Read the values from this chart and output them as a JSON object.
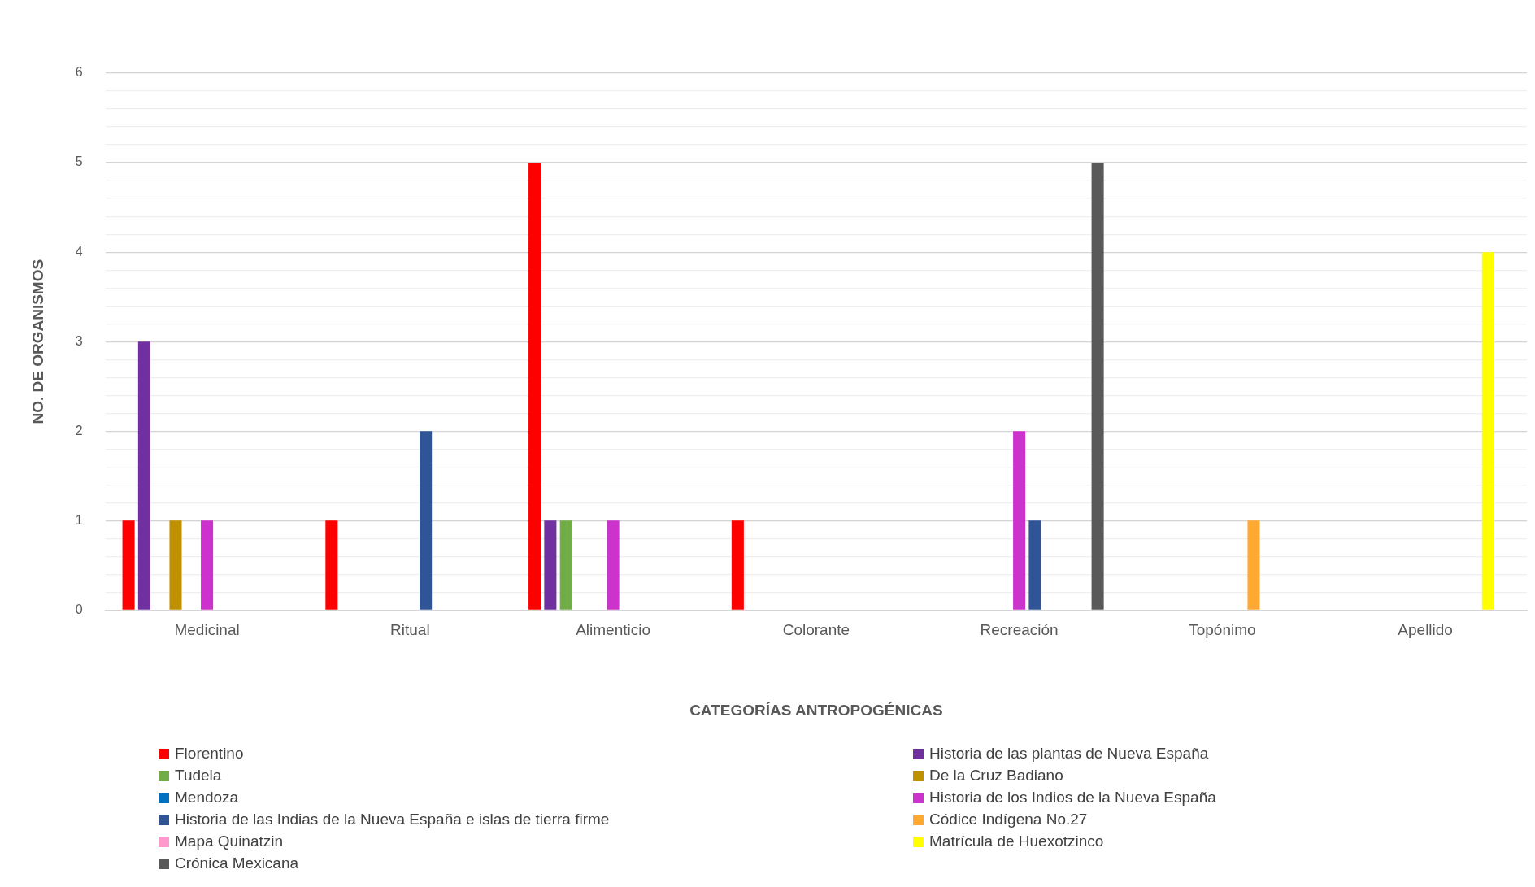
{
  "chart_data": {
    "type": "bar",
    "xlabel": "CATEGORÍAS ANTROPOGÉNICAS",
    "ylabel": "NO. DE ORGANISMOS",
    "categories": [
      "Medicinal",
      "Ritual",
      "Alimenticio",
      "Colorante",
      "Recreación",
      "Topónimo",
      "Apellido"
    ],
    "series": [
      {
        "name": "Florentino",
        "color": "#ff0000",
        "values": [
          1,
          1,
          5,
          1,
          0,
          0,
          0
        ]
      },
      {
        "name": "Historia de las plantas de Nueva España",
        "color": "#7030a0",
        "values": [
          3,
          0,
          1,
          0,
          0,
          0,
          0
        ]
      },
      {
        "name": "Tudela",
        "color": "#70ad47",
        "values": [
          0,
          0,
          1,
          0,
          0,
          0,
          0
        ]
      },
      {
        "name": "De la Cruz Badiano",
        "color": "#bf9000",
        "values": [
          1,
          0,
          0,
          0,
          0,
          0,
          0
        ]
      },
      {
        "name": "Mendoza",
        "color": "#0070c0",
        "values": [
          0,
          0,
          0,
          0,
          0,
          0,
          0
        ]
      },
      {
        "name": "Historia de los Indios de la Nueva España",
        "color": "#cc33cc",
        "values": [
          1,
          0,
          1,
          0,
          2,
          0,
          0
        ]
      },
      {
        "name": "Historia de las Indias de la Nueva España e islas de tierra firme",
        "color": "#2f5597",
        "values": [
          0,
          2,
          0,
          0,
          1,
          0,
          0
        ]
      },
      {
        "name": "Códice Indígena No.27",
        "color": "#ffa933",
        "values": [
          0,
          0,
          0,
          0,
          0,
          1,
          0
        ]
      },
      {
        "name": "Mapa Quinatzin",
        "color": "#ff99cc",
        "values": [
          0,
          0,
          0,
          0,
          0,
          0,
          0
        ]
      },
      {
        "name": "Matrícula de Huexotzinco",
        "color": "#ffff00",
        "values": [
          0,
          0,
          0,
          0,
          0,
          0,
          4
        ]
      },
      {
        "name": "Crónica Mexicana",
        "color": "#595959",
        "values": [
          0,
          0,
          0,
          0,
          5,
          0,
          0
        ]
      }
    ],
    "ylim": [
      0,
      6
    ],
    "yticks": [
      0,
      {
        "value": 0.2,
        "label": null
      },
      {
        "value": 0.4,
        "label": null
      },
      {
        "value": 0.6,
        "label": null
      },
      {
        "value": 0.8,
        "label": null
      },
      1,
      {
        "value": 1.2,
        "label": null
      },
      {
        "value": 1.4,
        "label": null
      },
      {
        "value": 1.6,
        "label": null
      },
      {
        "value": 1.8,
        "label": null
      },
      2,
      {
        "value": 2.2,
        "label": null
      },
      {
        "value": 2.4,
        "label": null
      },
      {
        "value": 2.6,
        "label": null
      },
      {
        "value": 2.8,
        "label": null
      },
      3,
      {
        "value": 3.2,
        "label": null
      },
      {
        "value": 3.4,
        "label": null
      },
      {
        "value": 3.6,
        "label": null
      },
      {
        "value": 3.8,
        "label": null
      },
      4,
      {
        "value": 4.2,
        "label": null
      },
      {
        "value": 4.4,
        "label": null
      },
      {
        "value": 4.6,
        "label": null
      },
      {
        "value": 4.8,
        "label": null
      },
      5,
      {
        "value": 5.2,
        "label": null
      },
      {
        "value": 5.4,
        "label": null
      },
      {
        "value": 5.6,
        "label": null
      },
      {
        "value": 5.8,
        "label": null
      },
      6
    ],
    "grid": "y",
    "legend": "bottom"
  }
}
